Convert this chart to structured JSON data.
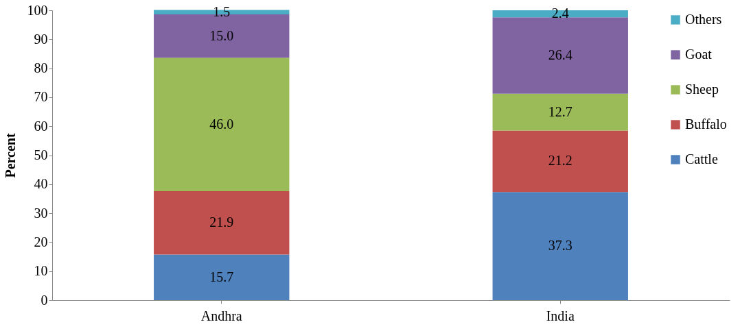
{
  "chart_data": {
    "type": "bar",
    "stacked": true,
    "ylabel": "Percent",
    "categories": [
      "Andhra",
      "India"
    ],
    "series": [
      {
        "name": "Cattle",
        "color": "#4f81bd",
        "values": [
          15.7,
          37.3
        ],
        "value_labels": [
          "15.7",
          "37.3"
        ]
      },
      {
        "name": "Buffalo",
        "color": "#c0504d",
        "values": [
          21.9,
          21.2
        ],
        "value_labels": [
          "21.9",
          "21.2"
        ]
      },
      {
        "name": "Sheep",
        "color": "#9bbb59",
        "values": [
          46.0,
          12.7
        ],
        "value_labels": [
          "46.0",
          "12.7"
        ]
      },
      {
        "name": "Goat",
        "color": "#8064a2",
        "values": [
          15.0,
          26.4
        ],
        "value_labels": [
          "15.0",
          "26.4"
        ]
      },
      {
        "name": "Others",
        "color": "#4bacc6",
        "values": [
          1.5,
          2.4
        ],
        "value_labels": [
          "1.5",
          "2.4"
        ]
      }
    ],
    "ylim": [
      0,
      100
    ],
    "yticks": [
      0,
      10,
      20,
      30,
      40,
      50,
      60,
      70,
      80,
      90,
      100
    ],
    "grid": false,
    "legend": "right"
  }
}
